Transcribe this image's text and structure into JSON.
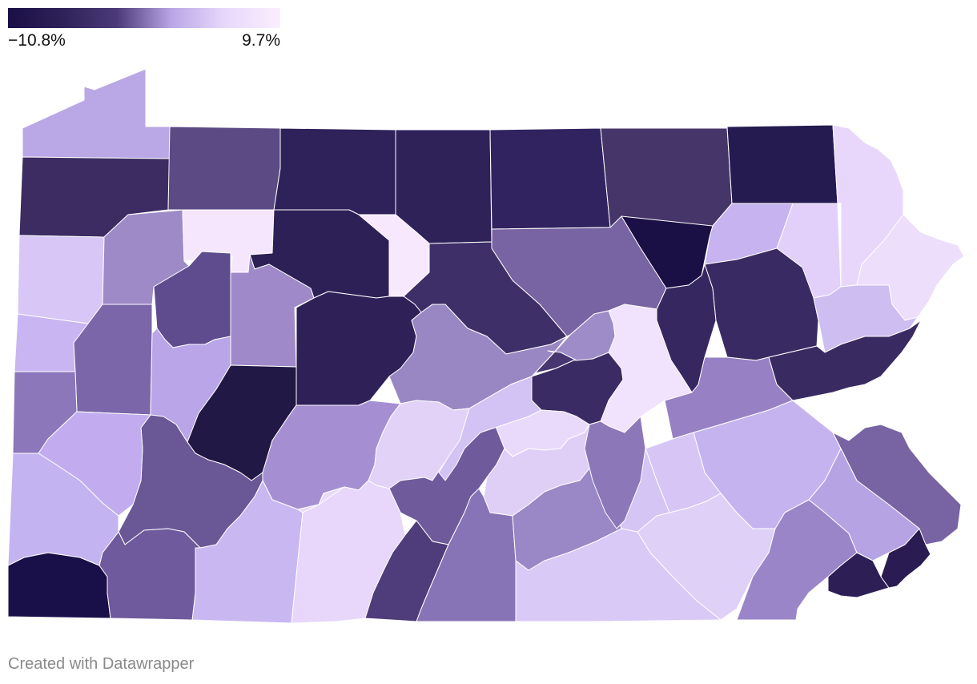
{
  "legend": {
    "min_label": "−10.8%",
    "max_label": "9.7%",
    "min_value": -10.8,
    "max_value": 9.7,
    "colors": [
      "#1a1046",
      "#2e2157",
      "#4b3a78",
      "#b9a6e6",
      "#e7d9fb",
      "#fbeefe"
    ]
  },
  "credit": "Created with Datawrapper",
  "counties": [
    {
      "id": "c01",
      "color": "#b9a7e6"
    },
    {
      "id": "c02",
      "color": "#3c2c62"
    },
    {
      "id": "c03",
      "color": "#5b4a84"
    },
    {
      "id": "c04",
      "color": "#2f2159"
    },
    {
      "id": "c05",
      "color": "#2e2259"
    },
    {
      "id": "c06",
      "color": "#312360"
    },
    {
      "id": "c07",
      "color": "#453569"
    },
    {
      "id": "c08",
      "color": "#251b50"
    },
    {
      "id": "c09",
      "color": "#e9d7fb"
    },
    {
      "id": "c10",
      "color": "#d7c6f6"
    },
    {
      "id": "c11",
      "color": "#9d8ac7"
    },
    {
      "id": "c12",
      "color": "#f6e6fd"
    },
    {
      "id": "c13",
      "color": "#2c2057"
    },
    {
      "id": "c14",
      "color": "#f8e8fd"
    },
    {
      "id": "c15",
      "color": "#3f2f68"
    },
    {
      "id": "c16",
      "color": "#7863a3"
    },
    {
      "id": "c17",
      "color": "#1b1046"
    },
    {
      "id": "c18",
      "color": "#c7b3ef"
    },
    {
      "id": "c19",
      "color": "#e3d0fa"
    },
    {
      "id": "c20",
      "color": "#eddefc"
    },
    {
      "id": "c21",
      "color": "#c8b5f2"
    },
    {
      "id": "c22",
      "color": "#7a66a9"
    },
    {
      "id": "c23",
      "color": "#5e4c8e"
    },
    {
      "id": "c24",
      "color": "#9f89c9"
    },
    {
      "id": "c25",
      "color": "#2f2058"
    },
    {
      "id": "c26",
      "color": "#9987c4"
    },
    {
      "id": "c27",
      "color": "#473670"
    },
    {
      "id": "c28",
      "color": "#372761"
    },
    {
      "id": "c29",
      "color": "#3a2a63"
    },
    {
      "id": "c30",
      "color": "#cdbdf1"
    },
    {
      "id": "c31",
      "color": "#8b77ba"
    },
    {
      "id": "c32",
      "color": "#b9a5e8"
    },
    {
      "id": "c33",
      "color": "#221845"
    },
    {
      "id": "c34",
      "color": "#a58fd2"
    },
    {
      "id": "c35",
      "color": "#e2d2f8"
    },
    {
      "id": "c36",
      "color": "#6f5b9b"
    },
    {
      "id": "c37",
      "color": "#3b2b64"
    },
    {
      "id": "c38",
      "color": "#e9dafb"
    },
    {
      "id": "c39",
      "color": "#f1e2fd"
    },
    {
      "id": "c40",
      "color": "#9780c3"
    },
    {
      "id": "c41",
      "color": "#c5b3f0"
    },
    {
      "id": "c42",
      "color": "#3a2a62"
    },
    {
      "id": "c43",
      "color": "#d7c6f5"
    },
    {
      "id": "c44",
      "color": "#6a5796"
    },
    {
      "id": "c45",
      "color": "#c2acef"
    },
    {
      "id": "c46",
      "color": "#e9d9fb"
    },
    {
      "id": "c47",
      "color": "#dfcff7"
    },
    {
      "id": "c48",
      "color": "#c9b7f2"
    },
    {
      "id": "c49",
      "color": "#2b1e54"
    },
    {
      "id": "c50",
      "color": "#7863a3"
    },
    {
      "id": "c51",
      "color": "#19104a"
    },
    {
      "id": "c52",
      "color": "#6f5a9d"
    },
    {
      "id": "c53",
      "color": "#c4b3f1"
    },
    {
      "id": "c54",
      "color": "#e8d6fb"
    },
    {
      "id": "c55",
      "color": "#4e3d7a"
    },
    {
      "id": "c56",
      "color": "#8774b6"
    },
    {
      "id": "c57",
      "color": "#9987c6"
    },
    {
      "id": "c58",
      "color": "#d8c9f6"
    },
    {
      "id": "c59",
      "color": "#dfd0f8"
    },
    {
      "id": "c60",
      "color": "#d5c5f5"
    },
    {
      "id": "c61",
      "color": "#9a85c8"
    },
    {
      "id": "c62",
      "color": "#b5a3e4"
    },
    {
      "id": "c63",
      "color": "#2d1f55"
    },
    {
      "id": "c64",
      "color": "#2a1c52"
    },
    {
      "id": "c65",
      "color": "#9e8cc9"
    },
    {
      "id": "c66",
      "color": "#8c78b9"
    },
    {
      "id": "c67",
      "color": "#d3c2f4"
    }
  ]
}
